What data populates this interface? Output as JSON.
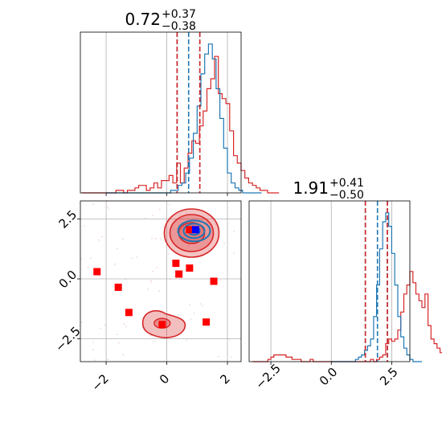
{
  "chart_data": [
    {
      "type": "histogram",
      "panel": "top-left",
      "title": {
        "value": "0.72",
        "plus": "+0.37",
        "minus": "−0.38"
      },
      "xlim": [
        -2.85,
        2.45
      ],
      "xticks": [
        -2,
        0,
        2
      ],
      "tick_labels_shown": false,
      "grid": true,
      "series": [
        {
          "color": "#1f77b4",
          "bin_edges_from": -2.0,
          "bin_width": 0.125,
          "counts": [
            0,
            0,
            0,
            0,
            0,
            0,
            0,
            0,
            0,
            0,
            0,
            0,
            0,
            0,
            0,
            0,
            0,
            1,
            1,
            3,
            4,
            8,
            14,
            24,
            35,
            48,
            56,
            60,
            54,
            42,
            30,
            18,
            8,
            4,
            2,
            1,
            0,
            0,
            0,
            0,
            0
          ],
          "vlines": [
            0.34,
            0.72,
            1.09
          ]
        },
        {
          "color": "#d62728",
          "bin_edges_from": -2.8,
          "bin_width": 0.125,
          "counts": [
            0,
            0,
            0,
            0,
            0,
            0,
            0,
            0,
            0,
            1,
            1,
            0,
            1,
            1,
            2,
            3,
            3,
            1,
            2,
            4,
            2,
            5,
            5,
            7,
            4,
            12,
            4,
            10,
            16,
            21,
            20,
            27,
            33,
            42,
            46,
            55,
            40,
            38,
            36,
            25,
            15,
            12,
            9,
            6,
            4,
            3,
            2,
            1,
            1,
            0,
            0,
            0
          ],
          "vlines": [
            0.34,
            1.09
          ]
        }
      ]
    },
    {
      "type": "scatter",
      "panel": "bottom-left",
      "xlim": [
        -2.85,
        2.45
      ],
      "ylim": [
        -3.45,
        3.25
      ],
      "xticks": [
        -2,
        0,
        2
      ],
      "yticks": [
        -2.5,
        0.0,
        2.5
      ],
      "xtick_labels": [
        "−2",
        "0",
        "2"
      ],
      "ytick_labels": [
        "−2.5",
        "0.0",
        "2.5"
      ],
      "grid": true,
      "red_contours_center_x": 0.72,
      "red_contours_center_y": 1.91,
      "blue_contours_center_x": 0.9,
      "blue_contours_center_y": 2.0,
      "red_secondary_blob_x": -0.1,
      "red_secondary_blob_y": -1.85,
      "red_markers": [
        {
          "x": -2.3,
          "y": 0.3
        },
        {
          "x": -1.6,
          "y": -0.35
        },
        {
          "x": -1.25,
          "y": -1.4
        },
        {
          "x": -0.15,
          "y": -1.9
        },
        {
          "x": 0.3,
          "y": 0.65
        },
        {
          "x": 0.4,
          "y": 0.2
        },
        {
          "x": 0.75,
          "y": 0.45
        },
        {
          "x": 0.75,
          "y": 2.05
        },
        {
          "x": 1.3,
          "y": -1.8
        },
        {
          "x": 1.55,
          "y": -0.1
        }
      ],
      "blue_markers": [
        {
          "x": 0.95,
          "y": 2.05
        }
      ]
    },
    {
      "type": "histogram",
      "panel": "bottom-right",
      "title": {
        "value": "1.91",
        "plus": "+0.41",
        "minus": "−0.50"
      },
      "xlim": [
        -3.4,
        3.25
      ],
      "xticks": [
        -2.5,
        0.0,
        2.5
      ],
      "xtick_labels": [
        "−2.5",
        "0.0",
        "2.5"
      ],
      "grid": true,
      "series": [
        {
          "color": "#1f77b4",
          "bin_edges_from": 0.0,
          "bin_width": 0.125,
          "counts": [
            0,
            0,
            0,
            0,
            0,
            0,
            0,
            0,
            1,
            2,
            3,
            5,
            7,
            10,
            20,
            34,
            50,
            62,
            66,
            60,
            48,
            34,
            20,
            11,
            6,
            3,
            1,
            0,
            0,
            0
          ],
          "vlines": [
            1.41,
            1.91,
            2.32
          ]
        },
        {
          "color": "#d62728",
          "bin_edges_from": -3.25,
          "bin_width": 0.125,
          "counts": [
            0,
            0,
            0,
            0,
            0,
            1,
            2,
            3,
            3,
            3,
            3,
            2,
            2,
            1,
            1,
            1,
            0,
            0,
            0,
            1,
            0,
            0,
            0,
            0,
            0,
            0,
            0,
            0,
            0,
            0,
            0,
            0,
            0,
            0,
            0,
            0,
            0,
            0,
            0,
            1,
            0,
            1,
            2,
            3,
            8,
            10,
            9,
            10,
            14,
            22,
            30,
            34,
            40,
            35,
            30,
            27,
            24,
            30,
            16,
            10,
            8,
            6,
            4,
            2,
            1,
            0,
            0,
            0
          ],
          "vlines": [
            1.41,
            2.32
          ]
        }
      ]
    }
  ],
  "colors": {
    "blue": "#1f77b4",
    "red": "#d62728",
    "grid": "#b0b0b0",
    "fill_red": "#f4a6a6"
  }
}
